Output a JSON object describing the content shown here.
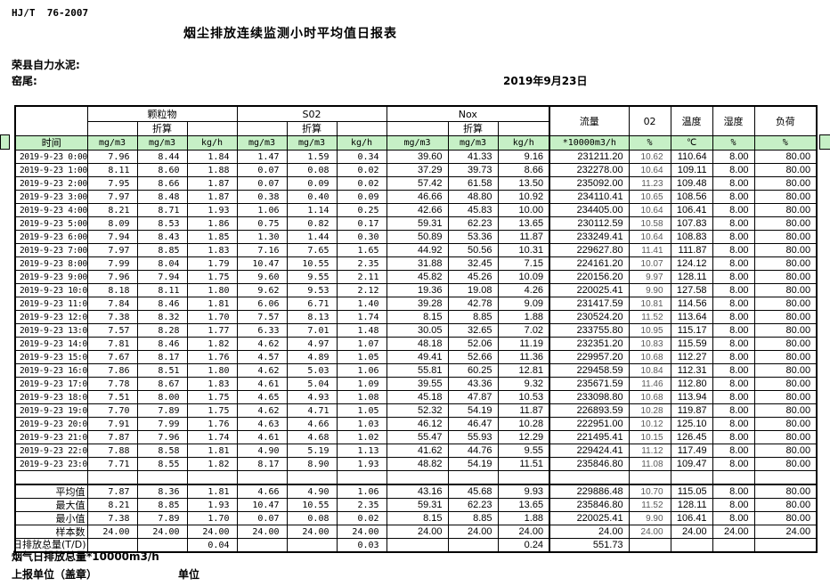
{
  "standard_code": "HJ/T  76-2007",
  "title": "烟尘排放连续监测小时平均值日报表",
  "company": "荣县自力水泥:",
  "location": "窑尾:",
  "report_date": "2019年9月23日",
  "table": {
    "time_label": "时间",
    "groups": [
      "颗粒物",
      "S02",
      "Nox"
    ],
    "converted_label": "折算",
    "right_headers": [
      "流量",
      "02",
      "温度",
      "湿度",
      "负荷"
    ],
    "units": [
      "mg/m3",
      "mg/m3",
      "kg/h",
      "mg/m3",
      "mg/m3",
      "kg/h",
      "mg/m3",
      "mg/m3",
      "kg/h",
      "*10000m3/h",
      "%",
      "℃",
      "%",
      "%"
    ],
    "rows": [
      [
        "2019-9-23 0:00",
        "7.96",
        "8.44",
        "1.84",
        "1.47",
        "1.59",
        "0.34",
        "39.60",
        "41.33",
        "9.16",
        "231211.20",
        "10.62",
        "110.64",
        "8.00",
        "80.00"
      ],
      [
        "2019-9-23 1:00",
        "8.11",
        "8.60",
        "1.88",
        "0.07",
        "0.08",
        "0.02",
        "37.29",
        "39.73",
        "8.66",
        "232278.00",
        "10.64",
        "109.11",
        "8.00",
        "80.00"
      ],
      [
        "2019-9-23 2:00",
        "7.95",
        "8.66",
        "1.87",
        "0.07",
        "0.09",
        "0.02",
        "57.42",
        "61.58",
        "13.50",
        "235092.00",
        "11.23",
        "109.48",
        "8.00",
        "80.00"
      ],
      [
        "2019-9-23 3:00",
        "7.97",
        "8.48",
        "1.87",
        "0.38",
        "0.40",
        "0.09",
        "46.66",
        "48.80",
        "10.92",
        "234110.41",
        "10.65",
        "108.56",
        "8.00",
        "80.00"
      ],
      [
        "2019-9-23 4:00",
        "8.21",
        "8.71",
        "1.93",
        "1.06",
        "1.14",
        "0.25",
        "42.66",
        "45.83",
        "10.00",
        "234405.00",
        "10.64",
        "106.41",
        "8.00",
        "80.00"
      ],
      [
        "2019-9-23 5:00",
        "8.09",
        "8.53",
        "1.86",
        "0.75",
        "0.82",
        "0.17",
        "59.31",
        "62.23",
        "13.65",
        "230112.59",
        "10.58",
        "107.83",
        "8.00",
        "80.00"
      ],
      [
        "2019-9-23 6:00",
        "7.94",
        "8.43",
        "1.85",
        "1.30",
        "1.44",
        "0.30",
        "50.89",
        "53.36",
        "11.87",
        "233249.41",
        "10.64",
        "108.83",
        "8.00",
        "80.00"
      ],
      [
        "2019-9-23 7:00",
        "7.97",
        "8.85",
        "1.83",
        "7.16",
        "7.65",
        "1.65",
        "44.92",
        "50.56",
        "10.31",
        "229627.80",
        "11.41",
        "111.87",
        "8.00",
        "80.00"
      ],
      [
        "2019-9-23 8:00",
        "7.99",
        "8.04",
        "1.79",
        "10.47",
        "10.55",
        "2.35",
        "31.88",
        "32.45",
        "7.15",
        "224161.20",
        "10.07",
        "124.12",
        "8.00",
        "80.00"
      ],
      [
        "2019-9-23 9:00",
        "7.96",
        "7.94",
        "1.75",
        "9.60",
        "9.55",
        "2.11",
        "45.82",
        "45.26",
        "10.09",
        "220156.20",
        "9.97",
        "128.11",
        "8.00",
        "80.00"
      ],
      [
        "2019-9-23 10:00",
        "8.18",
        "8.11",
        "1.80",
        "9.62",
        "9.53",
        "2.12",
        "19.36",
        "19.08",
        "4.26",
        "220025.41",
        "9.90",
        "127.58",
        "8.00",
        "80.00"
      ],
      [
        "2019-9-23 11:00",
        "7.84",
        "8.46",
        "1.81",
        "6.06",
        "6.71",
        "1.40",
        "39.28",
        "42.78",
        "9.09",
        "231417.59",
        "10.81",
        "114.56",
        "8.00",
        "80.00"
      ],
      [
        "2019-9-23 12:00",
        "7.38",
        "8.32",
        "1.70",
        "7.57",
        "8.13",
        "1.74",
        "8.15",
        "8.85",
        "1.88",
        "230524.20",
        "11.52",
        "113.64",
        "8.00",
        "80.00"
      ],
      [
        "2019-9-23 13:00",
        "7.57",
        "8.28",
        "1.77",
        "6.33",
        "7.01",
        "1.48",
        "30.05",
        "32.65",
        "7.02",
        "233755.80",
        "10.95",
        "115.17",
        "8.00",
        "80.00"
      ],
      [
        "2019-9-23 14:00",
        "7.81",
        "8.46",
        "1.82",
        "4.62",
        "4.97",
        "1.07",
        "48.18",
        "52.06",
        "11.19",
        "232351.20",
        "10.83",
        "115.59",
        "8.00",
        "80.00"
      ],
      [
        "2019-9-23 15:00",
        "7.67",
        "8.17",
        "1.76",
        "4.57",
        "4.89",
        "1.05",
        "49.41",
        "52.66",
        "11.36",
        "229957.20",
        "10.68",
        "112.27",
        "8.00",
        "80.00"
      ],
      [
        "2019-9-23 16:00",
        "7.86",
        "8.51",
        "1.80",
        "4.62",
        "5.03",
        "1.06",
        "55.81",
        "60.25",
        "12.81",
        "229458.59",
        "10.84",
        "112.31",
        "8.00",
        "80.00"
      ],
      [
        "2019-9-23 17:00",
        "7.78",
        "8.67",
        "1.83",
        "4.61",
        "5.04",
        "1.09",
        "39.55",
        "43.36",
        "9.32",
        "235671.59",
        "11.46",
        "112.80",
        "8.00",
        "80.00"
      ],
      [
        "2019-9-23 18:00",
        "7.51",
        "8.00",
        "1.75",
        "4.65",
        "4.93",
        "1.08",
        "45.18",
        "47.87",
        "10.53",
        "233098.80",
        "10.68",
        "113.94",
        "8.00",
        "80.00"
      ],
      [
        "2019-9-23 19:00",
        "7.70",
        "7.89",
        "1.75",
        "4.62",
        "4.71",
        "1.05",
        "52.32",
        "54.19",
        "11.87",
        "226893.59",
        "10.28",
        "119.87",
        "8.00",
        "80.00"
      ],
      [
        "2019-9-23 20:00",
        "7.91",
        "7.99",
        "1.76",
        "4.63",
        "4.66",
        "1.03",
        "46.12",
        "46.47",
        "10.28",
        "222951.00",
        "10.12",
        "125.10",
        "8.00",
        "80.00"
      ],
      [
        "2019-9-23 21:00",
        "7.87",
        "7.96",
        "1.74",
        "4.61",
        "4.68",
        "1.02",
        "55.47",
        "55.93",
        "12.29",
        "221495.41",
        "10.15",
        "126.45",
        "8.00",
        "80.00"
      ],
      [
        "2019-9-23 22:00",
        "7.88",
        "8.58",
        "1.81",
        "4.90",
        "5.19",
        "1.13",
        "41.62",
        "44.76",
        "9.55",
        "229424.41",
        "11.12",
        "117.49",
        "8.00",
        "80.00"
      ],
      [
        "2019-9-23 23:00",
        "7.71",
        "8.55",
        "1.82",
        "8.17",
        "8.90",
        "1.93",
        "48.82",
        "54.19",
        "11.51",
        "235846.80",
        "11.08",
        "109.47",
        "8.00",
        "80.00"
      ]
    ],
    "summary": [
      {
        "label": "平均值",
        "values": [
          "7.87",
          "8.36",
          "1.81",
          "4.66",
          "4.90",
          "1.06",
          "43.16",
          "45.68",
          "9.93",
          "229886.48",
          "10.70",
          "115.05",
          "8.00",
          "80.00"
        ]
      },
      {
        "label": "最大值",
        "values": [
          "8.21",
          "8.85",
          "1.93",
          "10.47",
          "10.55",
          "2.35",
          "59.31",
          "62.23",
          "13.65",
          "235846.80",
          "11.52",
          "128.11",
          "8.00",
          "80.00"
        ]
      },
      {
        "label": "最小值",
        "values": [
          "7.38",
          "7.89",
          "1.70",
          "0.07",
          "0.08",
          "0.02",
          "8.15",
          "8.85",
          "1.88",
          "220025.41",
          "9.90",
          "106.41",
          "8.00",
          "80.00"
        ]
      },
      {
        "label": "样本数",
        "values": [
          "24.00",
          "24.00",
          "24.00",
          "24.00",
          "24.00",
          "24.00",
          "24.00",
          "24.00",
          "24.00",
          "24.00",
          "24.00",
          "24.00",
          "24.00",
          "24.00"
        ]
      },
      {
        "label": "日排放总量(T/D)",
        "values": [
          "",
          "",
          "0.04",
          "",
          "",
          "0.03",
          "",
          "",
          "0.24",
          "551.73",
          "",
          "",
          "",
          ""
        ]
      }
    ]
  },
  "footer": {
    "line1": "烟气日排放总量*10000m3/h",
    "line2_left": "上报单位（盖章）",
    "line2_right": "单位"
  },
  "colors": {
    "header_green": "#c6f0c6",
    "border": "#000000",
    "o2_text": "#595959"
  }
}
